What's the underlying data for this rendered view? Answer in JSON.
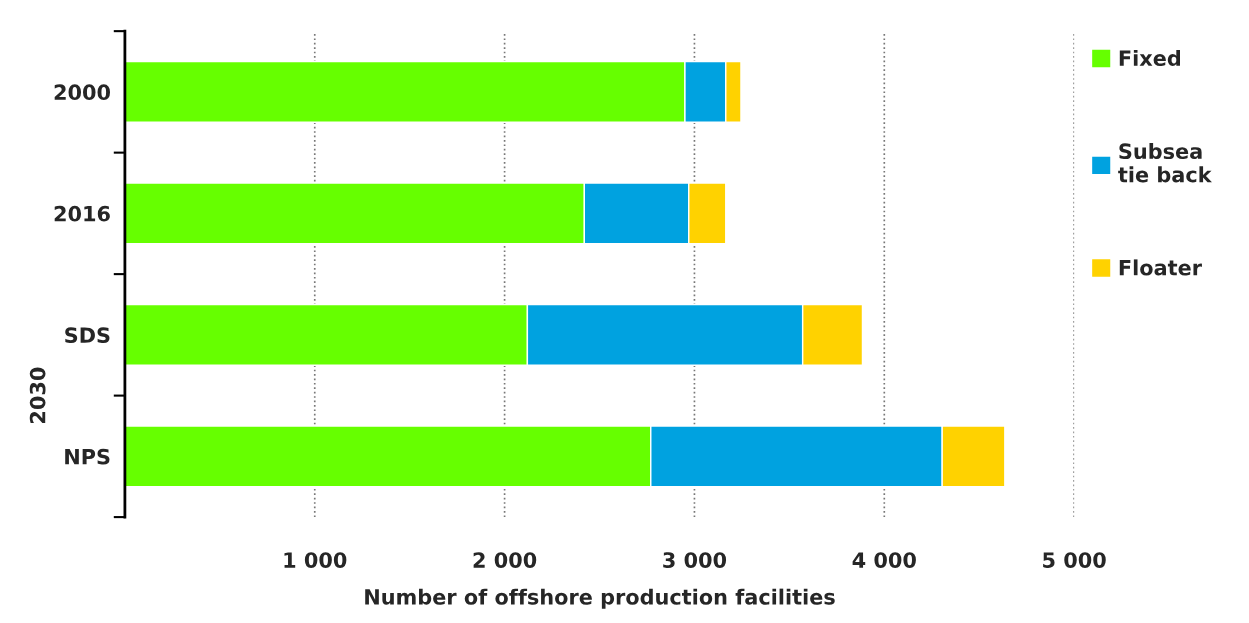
{
  "chart_data": {
    "type": "bar",
    "orientation": "horizontal",
    "stacked": true,
    "categories": [
      "2000",
      "2016",
      "SDS",
      "NPS"
    ],
    "series": [
      {
        "name": "Fixed",
        "color": "#66ff00",
        "values": [
          2950,
          2420,
          2120,
          2770
        ]
      },
      {
        "name": "Subsea\ntie back",
        "color": "#00a2e0",
        "values": [
          215,
          550,
          1450,
          1535
        ]
      },
      {
        "name": "Floater",
        "color": "#ffd200",
        "values": [
          80,
          195,
          315,
          330
        ]
      }
    ],
    "xlabel": "Number of offshore production facilities",
    "annotations": [
      "2030"
    ],
    "xlim": [
      0,
      5000
    ],
    "xticks": [
      {
        "value": 1000,
        "label": "1 000"
      },
      {
        "value": 2000,
        "label": "2 000"
      },
      {
        "value": 3000,
        "label": "3 000"
      },
      {
        "value": 4000,
        "label": "4 000"
      },
      {
        "value": 5000,
        "label": "5 000"
      }
    ],
    "grid": "x",
    "legend": "right"
  }
}
